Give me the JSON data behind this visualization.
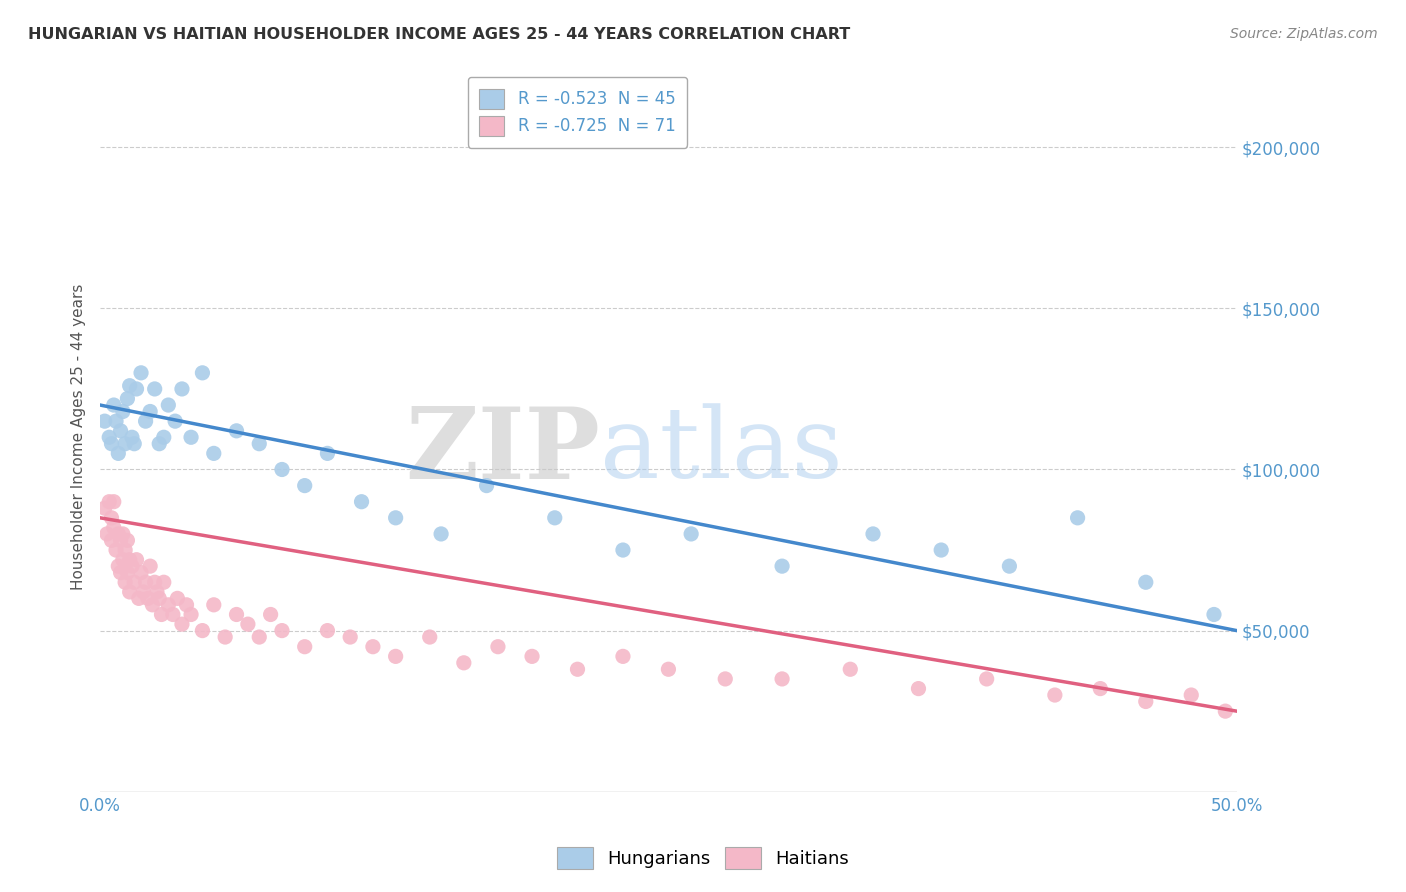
{
  "title": "HUNGARIAN VS HAITIAN HOUSEHOLDER INCOME AGES 25 - 44 YEARS CORRELATION CHART",
  "source": "Source: ZipAtlas.com",
  "ylabel": "Householder Income Ages 25 - 44 years",
  "xlim": [
    0.0,
    0.5
  ],
  "ylim": [
    0,
    220000
  ],
  "xticks": [
    0.0,
    0.05,
    0.1,
    0.15,
    0.2,
    0.25,
    0.3,
    0.35,
    0.4,
    0.45,
    0.5
  ],
  "xticklabels": [
    "0.0%",
    "",
    "",
    "",
    "",
    "",
    "",
    "",
    "",
    "",
    "50.0%"
  ],
  "ytick_values": [
    50000,
    100000,
    150000,
    200000
  ],
  "ytick_labels": [
    "$50,000",
    "$100,000",
    "$150,000",
    "$200,000"
  ],
  "hungarian_color": "#aacce8",
  "haitian_color": "#f4b8c8",
  "hungarian_line_color": "#4488cc",
  "haitian_line_color": "#e06080",
  "legend_r_hungarian": "R = -0.523",
  "legend_n_hungarian": "N = 45",
  "legend_r_haitian": "R = -0.725",
  "legend_n_haitian": "N = 71",
  "watermark_zip": "ZIP",
  "watermark_atlas": "atlas",
  "background_color": "#ffffff",
  "grid_color": "#cccccc",
  "axis_color": "#5599cc",
  "title_color": "#333333",
  "hungarian_x": [
    0.002,
    0.004,
    0.005,
    0.006,
    0.007,
    0.008,
    0.009,
    0.01,
    0.011,
    0.012,
    0.013,
    0.014,
    0.015,
    0.016,
    0.018,
    0.02,
    0.022,
    0.024,
    0.026,
    0.028,
    0.03,
    0.033,
    0.036,
    0.04,
    0.045,
    0.05,
    0.06,
    0.07,
    0.08,
    0.09,
    0.1,
    0.115,
    0.13,
    0.15,
    0.17,
    0.2,
    0.23,
    0.26,
    0.3,
    0.34,
    0.37,
    0.4,
    0.43,
    0.46,
    0.49
  ],
  "hungarian_y": [
    115000,
    110000,
    108000,
    120000,
    115000,
    105000,
    112000,
    118000,
    108000,
    122000,
    126000,
    110000,
    108000,
    125000,
    130000,
    115000,
    118000,
    125000,
    108000,
    110000,
    120000,
    115000,
    125000,
    110000,
    130000,
    105000,
    112000,
    108000,
    100000,
    95000,
    105000,
    90000,
    85000,
    80000,
    95000,
    85000,
    75000,
    80000,
    70000,
    80000,
    75000,
    70000,
    85000,
    65000,
    55000
  ],
  "haitian_x": [
    0.002,
    0.003,
    0.004,
    0.005,
    0.005,
    0.006,
    0.006,
    0.007,
    0.008,
    0.008,
    0.009,
    0.009,
    0.01,
    0.01,
    0.011,
    0.011,
    0.012,
    0.012,
    0.013,
    0.013,
    0.014,
    0.015,
    0.016,
    0.017,
    0.018,
    0.019,
    0.02,
    0.021,
    0.022,
    0.023,
    0.024,
    0.025,
    0.026,
    0.027,
    0.028,
    0.03,
    0.032,
    0.034,
    0.036,
    0.038,
    0.04,
    0.045,
    0.05,
    0.055,
    0.06,
    0.065,
    0.07,
    0.075,
    0.08,
    0.09,
    0.1,
    0.11,
    0.12,
    0.13,
    0.145,
    0.16,
    0.175,
    0.19,
    0.21,
    0.23,
    0.25,
    0.275,
    0.3,
    0.33,
    0.36,
    0.39,
    0.42,
    0.44,
    0.46,
    0.48,
    0.495
  ],
  "haitian_y": [
    88000,
    80000,
    90000,
    85000,
    78000,
    82000,
    90000,
    75000,
    80000,
    70000,
    78000,
    68000,
    80000,
    72000,
    75000,
    65000,
    78000,
    68000,
    72000,
    62000,
    70000,
    65000,
    72000,
    60000,
    68000,
    62000,
    65000,
    60000,
    70000,
    58000,
    65000,
    62000,
    60000,
    55000,
    65000,
    58000,
    55000,
    60000,
    52000,
    58000,
    55000,
    50000,
    58000,
    48000,
    55000,
    52000,
    48000,
    55000,
    50000,
    45000,
    50000,
    48000,
    45000,
    42000,
    48000,
    40000,
    45000,
    42000,
    38000,
    42000,
    38000,
    35000,
    35000,
    38000,
    32000,
    35000,
    30000,
    32000,
    28000,
    30000,
    25000
  ]
}
